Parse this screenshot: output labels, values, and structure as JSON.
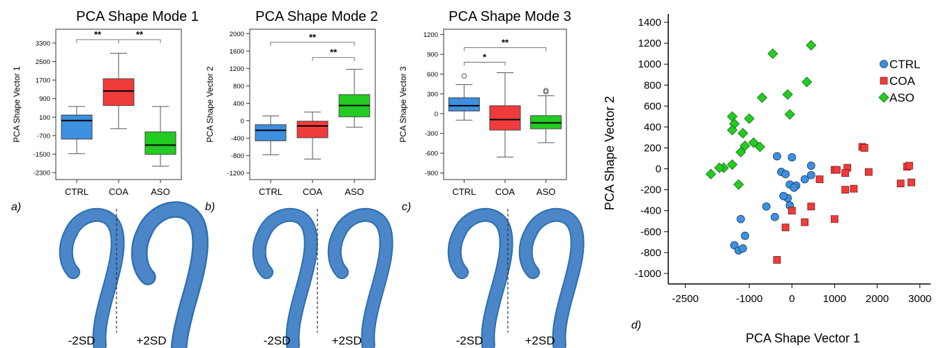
{
  "colors": {
    "ctrl": "#3d8fe0",
    "coa": "#f03b3b",
    "aso": "#22cc22",
    "aorta": "#4a86c8"
  },
  "panels": [
    {
      "id": "a",
      "panel_label": "a)",
      "title": "PCA Shape Mode 1",
      "ylabel": "PCA Shape Vector 1",
      "ylim": [
        -2600,
        3900
      ],
      "yticks": [
        "3300",
        "2500",
        "1700",
        "900",
        "100",
        "-700",
        "-1500",
        "-2300"
      ],
      "yticks_values": [
        3300,
        2500,
        1700,
        900,
        100,
        -700,
        -1500,
        -2300
      ],
      "categories": [
        "CTRL",
        "COA",
        "ASO"
      ],
      "sig": [
        {
          "from": 0,
          "to": 1,
          "label": "**",
          "y": 3450
        },
        {
          "from": 1,
          "to": 2,
          "label": "**",
          "y": 3450
        }
      ],
      "left_label": "-2SD",
      "right_label": "+2SD"
    },
    {
      "id": "b",
      "panel_label": "b)",
      "title": "PCA Shape Mode 2",
      "ylabel": "PCA Shape Vector 2",
      "ylim": [
        -1350,
        2100
      ],
      "yticks": [
        "2000",
        "1600",
        "1200",
        "800",
        "400",
        "0",
        "-400",
        "-800",
        "-1200"
      ],
      "yticks_values": [
        2000,
        1600,
        1200,
        800,
        400,
        0,
        -400,
        -800,
        -1200
      ],
      "categories": [
        "CTRL",
        "COA",
        "ASO"
      ],
      "sig": [
        {
          "from": 0,
          "to": 2,
          "label": "**",
          "y": 1800
        },
        {
          "from": 1,
          "to": 2,
          "label": "**",
          "y": 1450
        }
      ],
      "left_label": "-2SD",
      "right_label": "+2SD"
    },
    {
      "id": "c",
      "panel_label": "c)",
      "title": "PCA Shape Mode 3",
      "ylabel": "PCA Shape Vector 3",
      "ylim": [
        -1000,
        1280
      ],
      "yticks": [
        "1200",
        "900",
        "600",
        "300",
        "0",
        "-300",
        "-600",
        "-900"
      ],
      "yticks_values": [
        1200,
        900,
        600,
        300,
        0,
        -300,
        -600,
        -900
      ],
      "categories": [
        "CTRL",
        "COA",
        "ASO"
      ],
      "sig": [
        {
          "from": 0,
          "to": 2,
          "label": "**",
          "y": 1000
        },
        {
          "from": 0,
          "to": 1,
          "label": "*",
          "y": 780
        }
      ],
      "left_label": "-2SD",
      "right_label": "+2SD"
    }
  ],
  "chart_data": [
    {
      "type": "box",
      "title": "PCA Shape Mode 1",
      "ylabel": "PCA Shape Vector 1",
      "categories": [
        "CTRL",
        "COA",
        "ASO"
      ],
      "boxes": [
        {
          "name": "CTRL",
          "whisker_low": -1480,
          "q1": -850,
          "median": -50,
          "q3": 190,
          "whisker_high": 560,
          "outliers": []
        },
        {
          "name": "COA",
          "whisker_low": -400,
          "q1": 600,
          "median": 1230,
          "q3": 1760,
          "whisker_high": 2860,
          "outliers": []
        },
        {
          "name": "ASO",
          "whisker_low": -2020,
          "q1": -1510,
          "median": -1110,
          "q3": -540,
          "whisker_high": 560,
          "outliers": []
        }
      ]
    },
    {
      "type": "box",
      "title": "PCA Shape Mode 2",
      "ylabel": "PCA Shape Vector 2",
      "categories": [
        "CTRL",
        "COA",
        "ASO"
      ],
      "boxes": [
        {
          "name": "CTRL",
          "whisker_low": -780,
          "q1": -460,
          "median": -220,
          "q3": -90,
          "whisker_high": 110,
          "outliers": []
        },
        {
          "name": "COA",
          "whisker_low": -880,
          "q1": -390,
          "median": -120,
          "q3": -10,
          "whisker_high": 200,
          "outliers": []
        },
        {
          "name": "ASO",
          "whisker_low": -150,
          "q1": 90,
          "median": 350,
          "q3": 600,
          "whisker_high": 1180,
          "outliers": []
        }
      ]
    },
    {
      "type": "box",
      "title": "PCA Shape Mode 3",
      "ylabel": "PCA Shape Vector 3",
      "categories": [
        "CTRL",
        "COA",
        "ASO"
      ],
      "boxes": [
        {
          "name": "CTRL",
          "whisker_low": -100,
          "q1": 40,
          "median": 120,
          "q3": 240,
          "whisker_high": 440,
          "outliers": [
            570
          ]
        },
        {
          "name": "COA",
          "whisker_low": -660,
          "q1": -250,
          "median": -90,
          "q3": 120,
          "whisker_high": 620,
          "outliers": []
        },
        {
          "name": "ASO",
          "whisker_low": -440,
          "q1": -230,
          "median": -140,
          "q3": -30,
          "whisker_high": 270,
          "outliers": [
            330,
            350
          ]
        }
      ]
    },
    {
      "type": "scatter",
      "panel_label": "d)",
      "xlabel": "PCA Shape Vector 1",
      "ylabel": "PCA Shape Vector 2",
      "xlim": [
        -2900,
        3250
      ],
      "ylim": [
        -1100,
        1480
      ],
      "xticks": [
        -2500,
        -1000,
        0,
        1000,
        2000,
        3000
      ],
      "xtick_labels": [
        "-2500",
        "-1000",
        "0",
        "1000",
        "2000",
        "3000"
      ],
      "yticks": [
        1400,
        1200,
        1000,
        800,
        600,
        400,
        200,
        0,
        -200,
        -400,
        -600,
        -800,
        -1000
      ],
      "ytick_labels": [
        "1400",
        "1200",
        "1000",
        "800",
        "600",
        "400",
        "200",
        "0",
        "-200",
        "-400",
        "-600",
        "-800",
        "-1000"
      ],
      "legend_position": "top-right",
      "series": [
        {
          "name": "CTRL",
          "marker": "circle",
          "points": [
            [
              -350,
              120
            ],
            [
              0,
              110
            ],
            [
              -250,
              -30
            ],
            [
              -150,
              -50
            ],
            [
              -50,
              -150
            ],
            [
              100,
              -160
            ],
            [
              50,
              -180
            ],
            [
              450,
              30
            ],
            [
              450,
              -60
            ],
            [
              300,
              -100
            ],
            [
              -100,
              -280
            ],
            [
              -50,
              -350
            ],
            [
              -200,
              -260
            ],
            [
              -600,
              -360
            ],
            [
              -400,
              -460
            ],
            [
              -1200,
              -480
            ],
            [
              -1100,
              -640
            ],
            [
              -1350,
              -730
            ],
            [
              -1250,
              -780
            ],
            [
              -1150,
              -760
            ]
          ]
        },
        {
          "name": "COA",
          "marker": "square",
          "points": [
            [
              1000,
              -10
            ],
            [
              1050,
              -10
            ],
            [
              1300,
              10
            ],
            [
              1250,
              -40
            ],
            [
              1650,
              210
            ],
            [
              1700,
              200
            ],
            [
              1800,
              -30
            ],
            [
              2700,
              20
            ],
            [
              2750,
              30
            ],
            [
              2800,
              -130
            ],
            [
              2550,
              -140
            ],
            [
              1450,
              -190
            ],
            [
              1250,
              -200
            ],
            [
              650,
              -100
            ],
            [
              450,
              -360
            ],
            [
              300,
              -510
            ],
            [
              0,
              -400
            ],
            [
              -150,
              -560
            ],
            [
              1000,
              -480
            ],
            [
              -350,
              -870
            ]
          ]
        },
        {
          "name": "ASO",
          "marker": "diamond",
          "points": [
            [
              -450,
              1100
            ],
            [
              450,
              1180
            ],
            [
              350,
              830
            ],
            [
              -100,
              710
            ],
            [
              -50,
              520
            ],
            [
              -700,
              680
            ],
            [
              -1000,
              480
            ],
            [
              -1400,
              500
            ],
            [
              -1350,
              430
            ],
            [
              -1400,
              370
            ],
            [
              -1150,
              340
            ],
            [
              -900,
              250
            ],
            [
              -750,
              210
            ],
            [
              -1100,
              220
            ],
            [
              -1200,
              160
            ],
            [
              -1400,
              40
            ],
            [
              -1600,
              10
            ],
            [
              -1700,
              10
            ],
            [
              -1900,
              -50
            ],
            [
              -1250,
              -150
            ]
          ]
        }
      ]
    }
  ]
}
